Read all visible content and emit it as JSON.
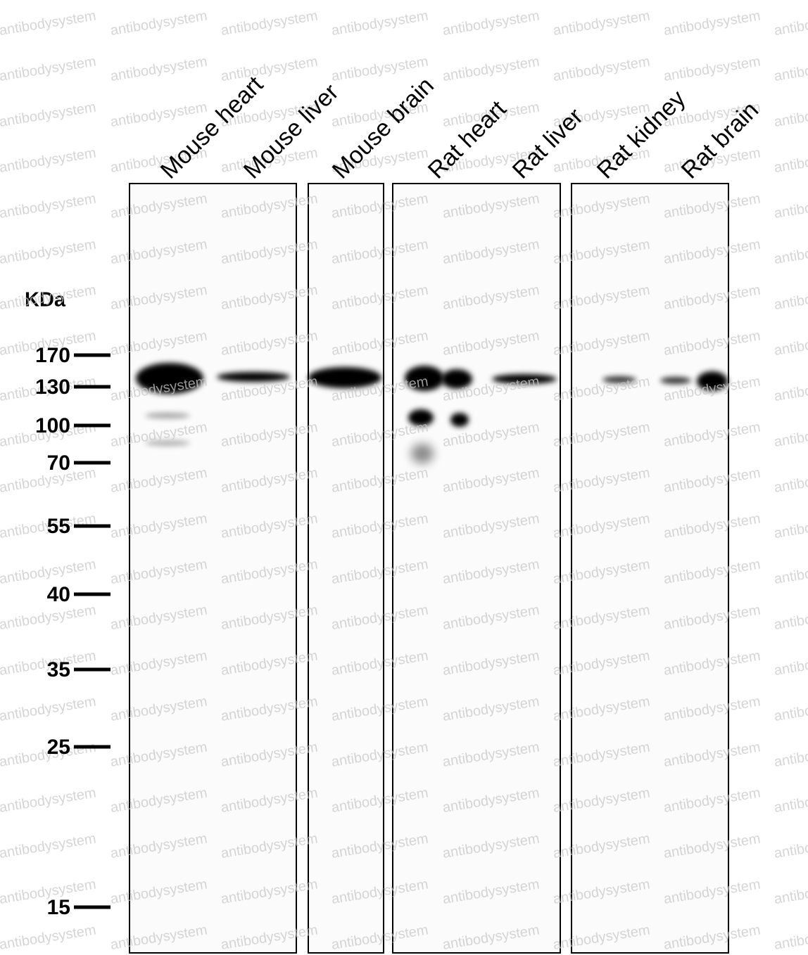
{
  "lanes": [
    "Mouse heart",
    "Mouse liver",
    "Mouse brain",
    "Rat heart",
    "Rat liver",
    "Rat kidney",
    "Rat brain"
  ],
  "unit": "KDa",
  "markers": [
    "170",
    "130",
    "100",
    "70",
    "55",
    "40",
    "35",
    "25",
    "15"
  ],
  "watermark": "antibodysystem"
}
